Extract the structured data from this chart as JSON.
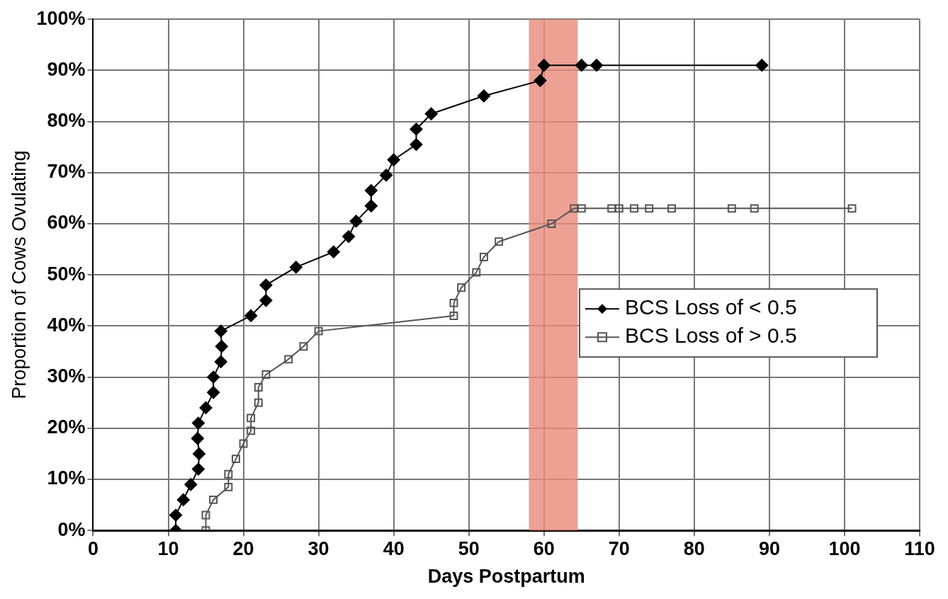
{
  "chart_data": {
    "type": "line",
    "xlabel": "Days Postpartum",
    "ylabel": "Proportion of Cows Ovulating",
    "xlim": [
      0,
      110
    ],
    "xticks": [
      0,
      10,
      20,
      30,
      40,
      50,
      60,
      70,
      80,
      90,
      100,
      110
    ],
    "ylim": [
      0,
      100
    ],
    "yticks": [
      {
        "value": 0,
        "label": "0%"
      },
      {
        "value": 10,
        "label": "10%"
      },
      {
        "value": 20,
        "label": "20%"
      },
      {
        "value": 30,
        "label": "30%"
      },
      {
        "value": 40,
        "label": "40%"
      },
      {
        "value": 50,
        "label": "50%"
      },
      {
        "value": 60,
        "label": "60%"
      },
      {
        "value": 70,
        "label": "70%"
      },
      {
        "value": 80,
        "label": "80%"
      },
      {
        "value": 90,
        "label": "90%"
      },
      {
        "value": 100,
        "label": "100%"
      }
    ],
    "grid": true,
    "legend": "right",
    "line_style": "solid",
    "bands": [
      {
        "axis": "x",
        "from": 58,
        "to": 64.5,
        "color": "#e8897b"
      }
    ],
    "series": [
      {
        "name": "BCS Loss of < 0.5",
        "color": "#000000",
        "marker": "diamond",
        "x": [
          11,
          11,
          12,
          13,
          14,
          14.1,
          13.9,
          14,
          15,
          16,
          16,
          17,
          17.1,
          17,
          21,
          23,
          23,
          27,
          32,
          34,
          35,
          37,
          37,
          39,
          40,
          43,
          43,
          45,
          52,
          59.5,
          60,
          65,
          67,
          89
        ],
        "values": [
          0,
          3,
          6,
          9,
          12,
          15,
          18,
          21,
          24,
          27,
          30,
          33,
          36,
          39,
          42,
          45,
          48,
          51.5,
          54.5,
          57.5,
          60.5,
          63.5,
          66.5,
          69.5,
          72.5,
          75.5,
          78.5,
          81.5,
          85,
          88,
          91,
          91,
          91,
          91
        ]
      },
      {
        "name": "BCS Loss of > 0.5",
        "color": "#555555",
        "marker": "square",
        "x": [
          15,
          15,
          16,
          18,
          18,
          19,
          20,
          21,
          21,
          22,
          22,
          23,
          26,
          28,
          30,
          48,
          48,
          49,
          51,
          52,
          54,
          61,
          64,
          65,
          69,
          70,
          72,
          74,
          77,
          85,
          88,
          101
        ],
        "values": [
          0,
          3,
          6,
          8.5,
          11,
          14,
          17,
          19.5,
          22,
          25,
          28,
          30.5,
          33.5,
          36,
          39,
          42,
          44.5,
          47.5,
          50.5,
          53.5,
          56.5,
          60,
          63,
          63,
          63,
          63,
          63,
          63,
          63,
          63,
          63,
          63
        ]
      }
    ]
  }
}
